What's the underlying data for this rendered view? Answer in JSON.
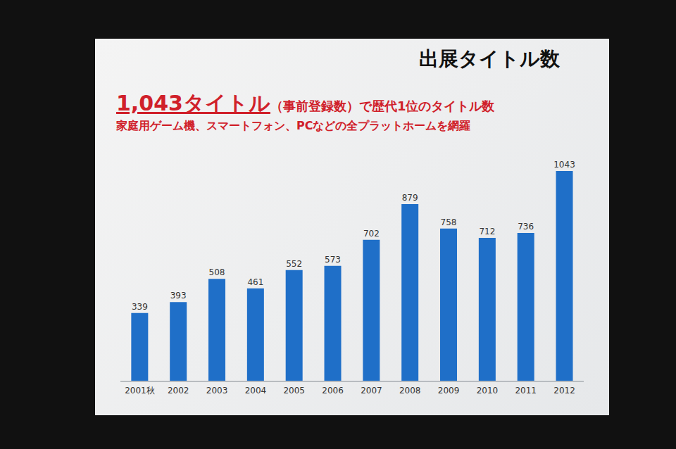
{
  "chart_data": {
    "type": "bar",
    "title": "出展タイトル数",
    "headline": "1,043タイトル",
    "headline_note": "（事前登録数）で歴代1位のタイトル数",
    "subtitle": "家庭用ゲーム機、スマートフォン、PCなどの全プラットホームを網羅",
    "categories": [
      "2001秋",
      "2002",
      "2003",
      "2004",
      "2005",
      "2006",
      "2007",
      "2008",
      "2009",
      "2010",
      "2011",
      "2012"
    ],
    "values": [
      339,
      393,
      508,
      461,
      552,
      573,
      702,
      879,
      758,
      712,
      736,
      1043
    ],
    "color": "#1f6fc8",
    "data_labels": true,
    "tick_labels": "x",
    "grid": false
  }
}
